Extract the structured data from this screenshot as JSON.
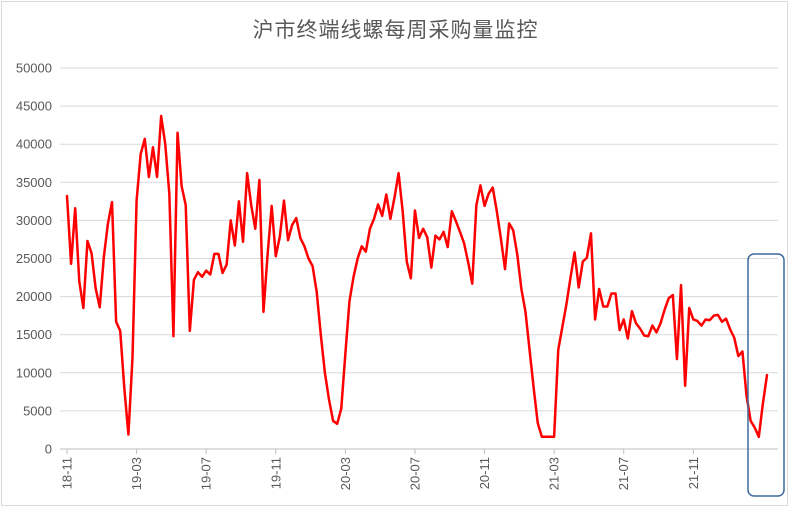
{
  "chart_data": {
    "type": "line",
    "title": "沪市终端线螺每周采购量监控",
    "ylim": [
      0,
      50000
    ],
    "y_ticks": [
      "0",
      "5000",
      "10000",
      "15000",
      "20000",
      "25000",
      "30000",
      "35000",
      "40000",
      "45000",
      "50000"
    ],
    "x_ticks": [
      "18-11",
      "19-03",
      "19-07",
      "19-11",
      "20-03",
      "20-07",
      "20-11",
      "21-03",
      "21-07",
      "21-11"
    ],
    "x_tick_positions": [
      0,
      17,
      34,
      51,
      68,
      85,
      102,
      119,
      136,
      153
    ],
    "series": [
      {
        "color": "#ff0000",
        "values": [
          33200,
          24300,
          31600,
          22000,
          18500,
          27300,
          25700,
          21100,
          18600,
          25200,
          29600,
          32400,
          16700,
          15500,
          8000,
          1900,
          12000,
          32600,
          38700,
          40700,
          35700,
          39600,
          35700,
          43700,
          40000,
          33500,
          14800,
          41500,
          34500,
          32000,
          15500,
          22200,
          23200,
          22600,
          23400,
          22900,
          25600,
          25600,
          23100,
          24200,
          30000,
          26700,
          32500,
          27200,
          36200,
          32000,
          28900,
          35300,
          18000,
          25500,
          31900,
          25300,
          27900,
          32600,
          27400,
          29400,
          30300,
          27700,
          26600,
          25000,
          24000,
          20600,
          15000,
          10000,
          6500,
          3700,
          3300,
          5300,
          12500,
          19400,
          22600,
          25000,
          26600,
          25900,
          28900,
          30200,
          32100,
          30600,
          33400,
          30200,
          33000,
          36200,
          31200,
          24600,
          22400,
          31300,
          27700,
          28900,
          27800,
          23800,
          28000,
          27500,
          28500,
          26500,
          31200,
          29900,
          28500,
          27000,
          24500,
          21700,
          32000,
          34600,
          31900,
          33500,
          34300,
          31200,
          27600,
          23600,
          29600,
          28700,
          25500,
          21000,
          18000,
          13000,
          8000,
          3400,
          1600,
          1600,
          1600,
          1600,
          13000,
          16000,
          19000,
          22500,
          25800,
          21200,
          24600,
          25100,
          28300,
          17000,
          21000,
          18700,
          18700,
          20400,
          20400,
          15600,
          17000,
          14500,
          18100,
          16500,
          15800,
          14900,
          14800,
          16200,
          15300,
          16500,
          18300,
          19800,
          20200,
          11800,
          21500,
          8300,
          18500,
          17000,
          16800,
          16200,
          17000,
          16900,
          17500,
          17600,
          16700,
          17100,
          15700,
          14600,
          12200,
          12800,
          7000,
          3700,
          2800,
          1600,
          6000,
          9700
        ]
      }
    ],
    "grid": "horizontal",
    "legend": "none",
    "annotation": "rounded-rect-box-around-last-points"
  }
}
